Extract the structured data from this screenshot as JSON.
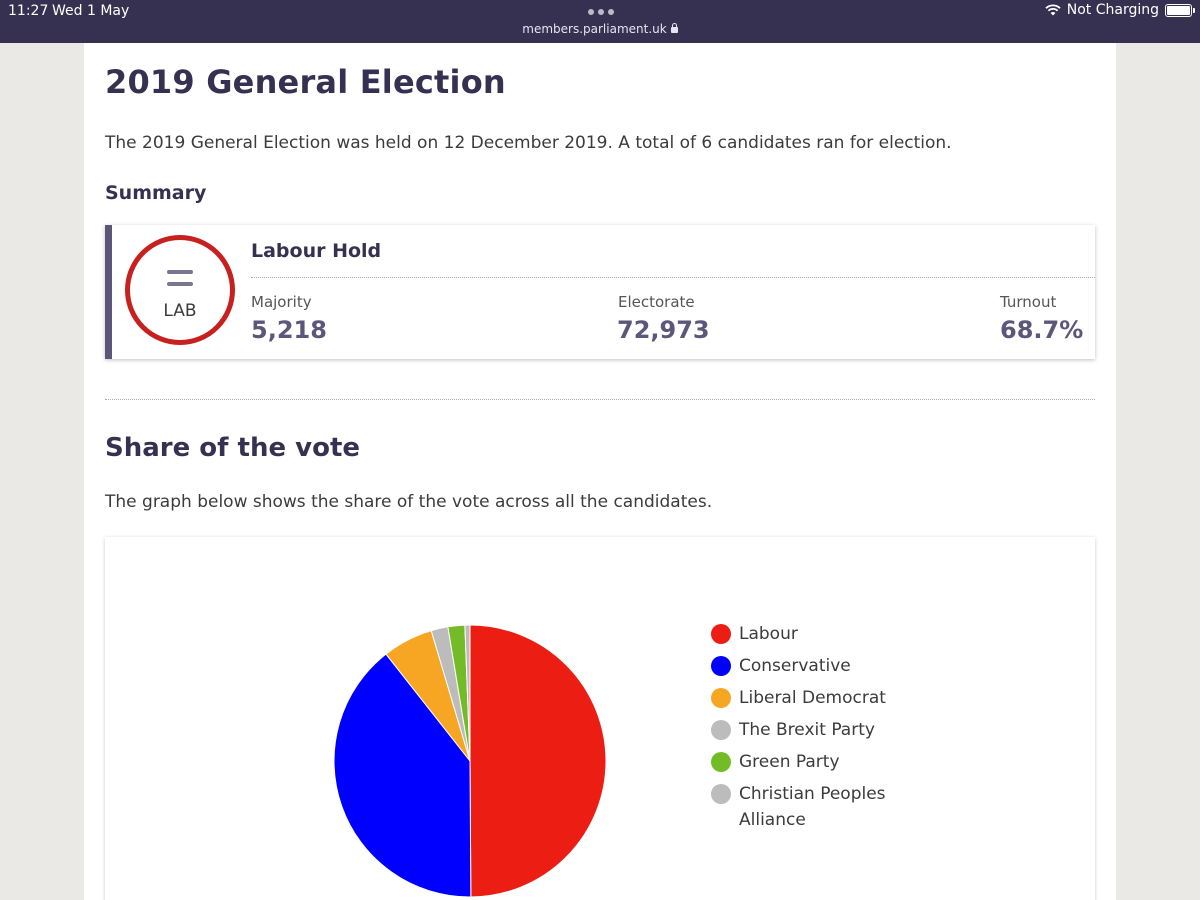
{
  "status_bar": {
    "time": "11:27",
    "date": "Wed 1 May",
    "url": "members.parliament.uk",
    "charging": "Not Charging"
  },
  "page": {
    "title": "2019 General Election",
    "intro": "The 2019 General Election was held on 12 December 2019. A total of 6 candidates ran for election.",
    "summary_heading": "Summary"
  },
  "summary": {
    "result": "Labour Hold",
    "party_abbr": "LAB",
    "party_color": "#c81f1f",
    "majority_label": "Majority",
    "majority_value": "5,218",
    "electorate_label": "Electorate",
    "electorate_value": "72,973",
    "turnout_label": "Turnout",
    "turnout_value": "68.7%"
  },
  "share": {
    "heading": "Share of the vote",
    "intro": "The graph below shows the share of the vote across all the candidates."
  },
  "chart_data": {
    "type": "pie",
    "title": "",
    "slices": [
      {
        "label": "Labour",
        "value": 49.9,
        "color": "#ec1e14"
      },
      {
        "label": "Conservative",
        "value": 39.5,
        "color": "#0000ff"
      },
      {
        "label": "Liberal Democrat",
        "value": 6.0,
        "color": "#f6a623"
      },
      {
        "label": "The Brexit Party",
        "value": 2.0,
        "color": "#bcbcbc"
      },
      {
        "label": "Green Party",
        "value": 2.0,
        "color": "#74bc27"
      },
      {
        "label": "Christian Peoples Alliance",
        "value": 0.6,
        "color": "#bcbcbc"
      }
    ],
    "legend_placement": "right"
  }
}
